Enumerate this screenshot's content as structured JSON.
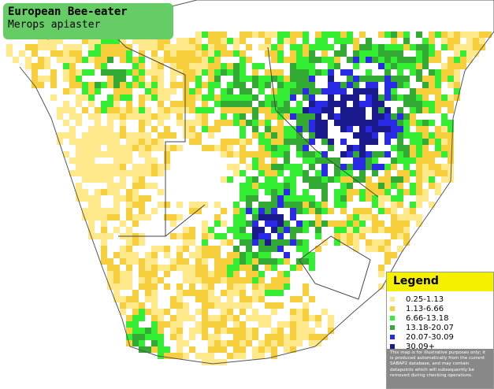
{
  "header": {
    "title": "European Bee-eater",
    "subtitle": "Merops apiaster"
  },
  "legend": {
    "title": "Legend",
    "items": [
      {
        "label": "0.25-1.13",
        "color": "#ffe98a"
      },
      {
        "label": "1.13-6.66",
        "color": "#f7cf3c"
      },
      {
        "label": "6.66-13.18",
        "color": "#33ee33"
      },
      {
        "label": "13.18-20.07",
        "color": "#33aa33"
      },
      {
        "label": "20.07-30.09",
        "color": "#2a2ae6"
      },
      {
        "label": "30.09+",
        "color": "#1a1a8c"
      }
    ],
    "disclaimer": "This map is for illustrative purposes only; it is produced automatically from the current SABAP2 database, and may contain datapoints which will subsequently be removed during checking operations."
  }
}
